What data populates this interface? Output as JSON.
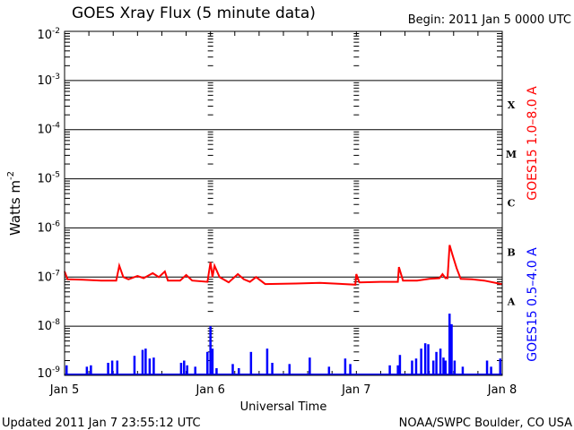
{
  "chart_data": {
    "type": "line",
    "title": "GOES Xray Flux (5 minute data)",
    "begin_label": "Begin:  2011 Jan 5 0000 UTC",
    "xlabel": "Universal Time",
    "ylabel": "Watts m",
    "ylabel_sup": "-2",
    "yscale": "log",
    "ylim": [
      1e-09,
      0.01
    ],
    "xlim": [
      "2011-01-05 00:00",
      "2011-01-08 00:00"
    ],
    "x_ticks": [
      {
        "label": "Jan 5",
        "t": "2011-01-05 00:00"
      },
      {
        "label": "Jan 6",
        "t": "2011-01-06 00:00"
      },
      {
        "label": "Jan 7",
        "t": "2011-01-07 00:00"
      },
      {
        "label": "Jan 8",
        "t": "2011-01-08 00:00"
      }
    ],
    "y_ticks": [
      {
        "base": "10",
        "exp": "-2",
        "value": 0.01
      },
      {
        "base": "10",
        "exp": "-3",
        "value": 0.001
      },
      {
        "base": "10",
        "exp": "-4",
        "value": 0.0001
      },
      {
        "base": "10",
        "exp": "-5",
        "value": 1e-05
      },
      {
        "base": "10",
        "exp": "-6",
        "value": 1e-06
      },
      {
        "base": "10",
        "exp": "-7",
        "value": 1e-07
      },
      {
        "base": "10",
        "exp": "-8",
        "value": 1e-08
      },
      {
        "base": "10",
        "exp": "-9",
        "value": 1e-09
      }
    ],
    "flare_classes": [
      {
        "label": "X",
        "value": 0.00032
      },
      {
        "label": "M",
        "value": 3.2e-05
      },
      {
        "label": "C",
        "value": 3.2e-06
      },
      {
        "label": "B",
        "value": 3.2e-07
      },
      {
        "label": "A",
        "value": 3.2e-08
      }
    ],
    "series": [
      {
        "name": "GOES15 1.0–8.0 A",
        "color": "#ff0000",
        "points": [
          [
            "2011-01-05 00:00",
            1.3e-07
          ],
          [
            "2011-01-05 00:30",
            9e-08
          ],
          [
            "2011-01-05 03:00",
            8.8e-08
          ],
          [
            "2011-01-05 06:00",
            8.5e-08
          ],
          [
            "2011-01-05 08:30",
            8.5e-08
          ],
          [
            "2011-01-05 09:00",
            1.7e-07
          ],
          [
            "2011-01-05 09:40",
            1e-07
          ],
          [
            "2011-01-05 10:30",
            9e-08
          ],
          [
            "2011-01-05 12:00",
            1.05e-07
          ],
          [
            "2011-01-05 13:00",
            9.5e-08
          ],
          [
            "2011-01-05 14:30",
            1.2e-07
          ],
          [
            "2011-01-05 15:30",
            1e-07
          ],
          [
            "2011-01-05 16:30",
            1.3e-07
          ],
          [
            "2011-01-05 17:00",
            8.5e-08
          ],
          [
            "2011-01-05 19:00",
            8.5e-08
          ],
          [
            "2011-01-05 20:00",
            1.1e-07
          ],
          [
            "2011-01-05 21:00",
            8.5e-08
          ],
          [
            "2011-01-05 23:30",
            8e-08
          ],
          [
            "2011-01-06 00:00",
            2e-07
          ],
          [
            "2011-01-06 00:20",
            1e-07
          ],
          [
            "2011-01-06 00:40",
            1.7e-07
          ],
          [
            "2011-01-06 01:30",
            1e-07
          ],
          [
            "2011-01-06 03:00",
            7.8e-08
          ],
          [
            "2011-01-06 04:30",
            1.15e-07
          ],
          [
            "2011-01-06 05:30",
            9e-08
          ],
          [
            "2011-01-06 06:30",
            8e-08
          ],
          [
            "2011-01-06 07:30",
            1e-07
          ],
          [
            "2011-01-06 09:00",
            7.2e-08
          ],
          [
            "2011-01-06 14:00",
            7.4e-08
          ],
          [
            "2011-01-06 18:00",
            7.6e-08
          ],
          [
            "2011-01-06 22:00",
            7.2e-08
          ],
          [
            "2011-01-06 23:50",
            7e-08
          ],
          [
            "2011-01-07 00:00",
            1.15e-07
          ],
          [
            "2011-01-07 00:30",
            7.8e-08
          ],
          [
            "2011-01-07 04:00",
            8e-08
          ],
          [
            "2011-01-07 06:50",
            8e-08
          ],
          [
            "2011-01-07 07:00",
            1.6e-07
          ],
          [
            "2011-01-07 07:40",
            8.5e-08
          ],
          [
            "2011-01-07 10:00",
            8.5e-08
          ],
          [
            "2011-01-07 12:00",
            9.2e-08
          ],
          [
            "2011-01-07 13:40",
            9.5e-08
          ],
          [
            "2011-01-07 14:10",
            1.15e-07
          ],
          [
            "2011-01-07 14:40",
            9.5e-08
          ],
          [
            "2011-01-07 15:00",
            9.5e-08
          ],
          [
            "2011-01-07 15:20",
            4.5e-07
          ],
          [
            "2011-01-07 15:50",
            2.8e-07
          ],
          [
            "2011-01-07 16:30",
            1.5e-07
          ],
          [
            "2011-01-07 17:10",
            9.2e-08
          ],
          [
            "2011-01-07 19:00",
            9e-08
          ],
          [
            "2011-01-07 21:00",
            8.5e-08
          ],
          [
            "2011-01-07 23:55",
            7.2e-08
          ]
        ]
      },
      {
        "name": "GOES15 0.5–4.0 A",
        "color": "#0000ff",
        "baseline": 1e-09,
        "points": [
          [
            "2011-01-05 00:20",
            1.6e-09
          ],
          [
            "2011-01-05 03:40",
            1.5e-09
          ],
          [
            "2011-01-05 04:20",
            1.6e-09
          ],
          [
            "2011-01-05 07:10",
            1.8e-09
          ],
          [
            "2011-01-05 07:50",
            2e-09
          ],
          [
            "2011-01-05 08:40",
            2e-09
          ],
          [
            "2011-01-05 11:30",
            2.5e-09
          ],
          [
            "2011-01-05 12:50",
            3.3e-09
          ],
          [
            "2011-01-05 13:20",
            3.5e-09
          ],
          [
            "2011-01-05 14:00",
            2.2e-09
          ],
          [
            "2011-01-05 14:40",
            2.3e-09
          ],
          [
            "2011-01-05 19:10",
            1.8e-09
          ],
          [
            "2011-01-05 19:40",
            2e-09
          ],
          [
            "2011-01-05 20:10",
            1.6e-09
          ],
          [
            "2011-01-05 21:30",
            1.5e-09
          ],
          [
            "2011-01-05 23:30",
            3e-09
          ],
          [
            "2011-01-06 00:00",
            1e-08
          ],
          [
            "2011-01-06 00:20",
            3.5e-09
          ],
          [
            "2011-01-06 01:00",
            1.4e-09
          ],
          [
            "2011-01-06 03:40",
            1.7e-09
          ],
          [
            "2011-01-06 04:40",
            1.4e-09
          ],
          [
            "2011-01-06 06:40",
            3e-09
          ],
          [
            "2011-01-06 09:20",
            3.5e-09
          ],
          [
            "2011-01-06 10:10",
            1.8e-09
          ],
          [
            "2011-01-06 13:00",
            1.7e-09
          ],
          [
            "2011-01-06 16:20",
            2.3e-09
          ],
          [
            "2011-01-06 19:30",
            1.5e-09
          ],
          [
            "2011-01-06 22:10",
            2.2e-09
          ],
          [
            "2011-01-06 23:00",
            1.7e-09
          ],
          [
            "2011-01-07 05:30",
            1.6e-09
          ],
          [
            "2011-01-07 06:50",
            1.6e-09
          ],
          [
            "2011-01-07 07:10",
            2.6e-09
          ],
          [
            "2011-01-07 09:10",
            2e-09
          ],
          [
            "2011-01-07 09:50",
            2.2e-09
          ],
          [
            "2011-01-07 10:40",
            3.5e-09
          ],
          [
            "2011-01-07 11:20",
            4.5e-09
          ],
          [
            "2011-01-07 11:50",
            4.3e-09
          ],
          [
            "2011-01-07 12:40",
            2e-09
          ],
          [
            "2011-01-07 13:10",
            3e-09
          ],
          [
            "2011-01-07 13:50",
            3.5e-09
          ],
          [
            "2011-01-07 14:20",
            2.3e-09
          ],
          [
            "2011-01-07 14:40",
            2e-09
          ],
          [
            "2011-01-07 15:20",
            1.8e-08
          ],
          [
            "2011-01-07 15:40",
            1.1e-08
          ],
          [
            "2011-01-07 16:10",
            2e-09
          ],
          [
            "2011-01-07 17:30",
            1.5e-09
          ],
          [
            "2011-01-07 21:30",
            2e-09
          ],
          [
            "2011-01-07 22:10",
            1.5e-09
          ],
          [
            "2011-01-07 23:40",
            2.2e-09
          ]
        ]
      }
    ],
    "footer_left": "Updated 2011 Jan  7 23:55:12 UTC",
    "footer_right": "NOAA/SWPC Boulder, CO USA"
  }
}
